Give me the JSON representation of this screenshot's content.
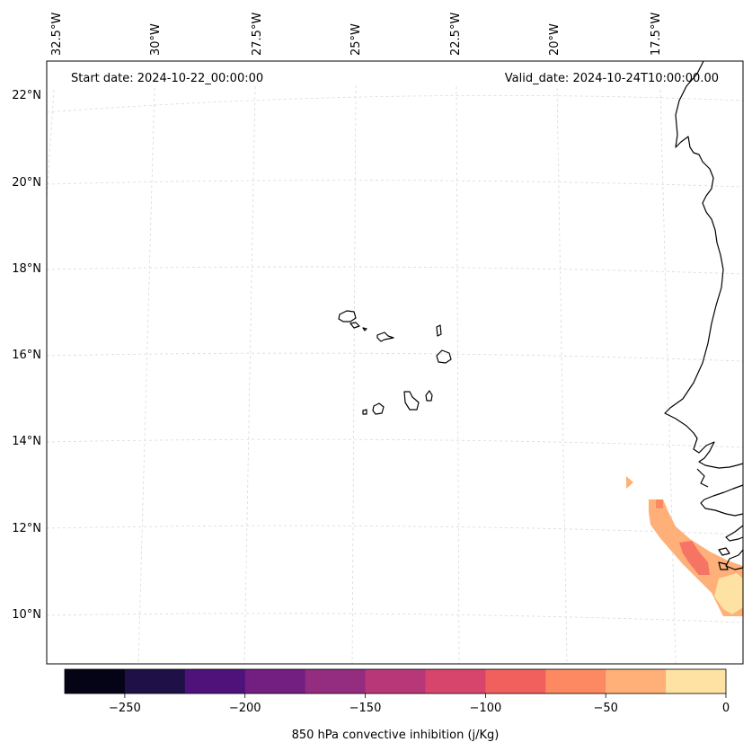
{
  "map": {
    "start_label": "Start date: 2024-10-22_00:00:00",
    "valid_label": "Valid_date: 2024-10-24T10:00:00.00",
    "lon_labels": [
      "32.5°W",
      "30°W",
      "27.5°W",
      "25°W",
      "22.5°W",
      "20°W",
      "17.5°W"
    ],
    "lat_labels": [
      "22°N",
      "20°N",
      "18°N",
      "16°N",
      "14°N",
      "12°N",
      "10°N"
    ],
    "gridline_color": "#d9d9d9",
    "coastline_color": "#000000"
  },
  "colorbar": {
    "label": "850 hPa convective inhibition (j/Kg)",
    "tick_labels": [
      "−250",
      "−200",
      "−150",
      "−100",
      "−50",
      "0"
    ],
    "colors": [
      "#050416",
      "#1f1147",
      "#4f127b",
      "#721f81",
      "#942c80",
      "#b73779",
      "#d8456c",
      "#f1605d",
      "#fc8961",
      "#feb078",
      "#fde2a3"
    ]
  }
}
